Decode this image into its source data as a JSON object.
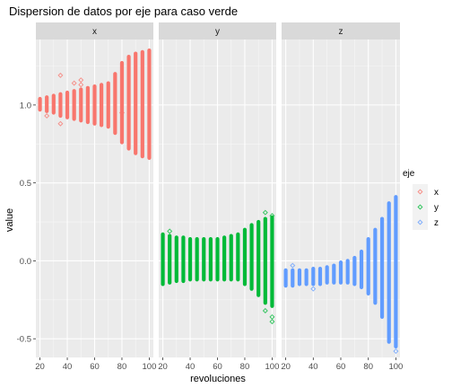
{
  "chart_data": {
    "type": "scatter",
    "title": "Dispersion de datos por eje para caso verde",
    "xlabel": "revoluciones",
    "ylabel": "value",
    "facets": [
      "x",
      "y",
      "z"
    ],
    "x_ticks": [
      20,
      40,
      60,
      80,
      100
    ],
    "y_ticks": [
      -0.5,
      0.0,
      0.5,
      1.0
    ],
    "y_tick_labels": [
      "-0.5",
      "0.0",
      "0.5",
      "1.0"
    ],
    "xlim": [
      17,
      103
    ],
    "ylim": [
      -0.62,
      1.42
    ],
    "grid": true,
    "legend": {
      "title": "eje",
      "position": "right",
      "entries": [
        "x",
        "y",
        "z"
      ]
    },
    "colors": {
      "x": "#F8766D",
      "y": "#00BA38",
      "z": "#619CFF"
    },
    "series": [
      {
        "name": "x",
        "revoluciones": [
          20,
          25,
          30,
          35,
          40,
          45,
          50,
          55,
          60,
          65,
          70,
          75,
          80,
          85,
          90,
          95,
          100
        ],
        "min": [
          0.97,
          0.96,
          0.95,
          0.93,
          0.92,
          0.91,
          0.9,
          0.89,
          0.88,
          0.87,
          0.86,
          0.82,
          0.76,
          0.72,
          0.69,
          0.67,
          0.66
        ],
        "max": [
          1.04,
          1.05,
          1.06,
          1.07,
          1.08,
          1.09,
          1.1,
          1.11,
          1.12,
          1.13,
          1.14,
          1.2,
          1.27,
          1.31,
          1.33,
          1.34,
          1.35
        ],
        "outliers": [
          [
            25,
            0.93
          ],
          [
            35,
            0.88
          ],
          [
            35,
            1.19
          ],
          [
            45,
            1.14
          ],
          [
            50,
            1.16
          ],
          [
            50,
            1.13
          ],
          [
            80,
            0.95
          ]
        ]
      },
      {
        "name": "y",
        "revoluciones": [
          20,
          25,
          30,
          35,
          40,
          45,
          50,
          55,
          60,
          65,
          70,
          75,
          80,
          85,
          90,
          95,
          100
        ],
        "min": [
          -0.15,
          -0.14,
          -0.13,
          -0.13,
          -0.12,
          -0.12,
          -0.12,
          -0.12,
          -0.12,
          -0.12,
          -0.12,
          -0.12,
          -0.15,
          -0.18,
          -0.22,
          -0.27,
          -0.29
        ],
        "max": [
          0.17,
          0.16,
          0.15,
          0.15,
          0.14,
          0.14,
          0.14,
          0.14,
          0.14,
          0.15,
          0.16,
          0.17,
          0.2,
          0.23,
          0.25,
          0.27,
          0.28
        ],
        "outliers": [
          [
            25,
            0.19
          ],
          [
            95,
            0.31
          ],
          [
            95,
            -0.32
          ],
          [
            100,
            -0.36
          ],
          [
            100,
            -0.39
          ],
          [
            100,
            0.29
          ]
        ]
      },
      {
        "name": "z",
        "revoluciones": [
          20,
          25,
          30,
          35,
          40,
          45,
          50,
          55,
          60,
          65,
          70,
          75,
          80,
          85,
          90,
          95,
          100
        ],
        "min": [
          -0.16,
          -0.16,
          -0.15,
          -0.15,
          -0.15,
          -0.15,
          -0.14,
          -0.14,
          -0.14,
          -0.14,
          -0.15,
          -0.17,
          -0.21,
          -0.27,
          -0.36,
          -0.52,
          -0.55
        ],
        "max": [
          -0.06,
          -0.06,
          -0.06,
          -0.06,
          -0.05,
          -0.05,
          -0.04,
          -0.03,
          -0.01,
          0.0,
          0.02,
          0.06,
          0.14,
          0.2,
          0.27,
          0.37,
          0.41
        ],
        "outliers": [
          [
            25,
            -0.03
          ],
          [
            40,
            -0.18
          ],
          [
            100,
            -0.58
          ]
        ]
      }
    ]
  }
}
